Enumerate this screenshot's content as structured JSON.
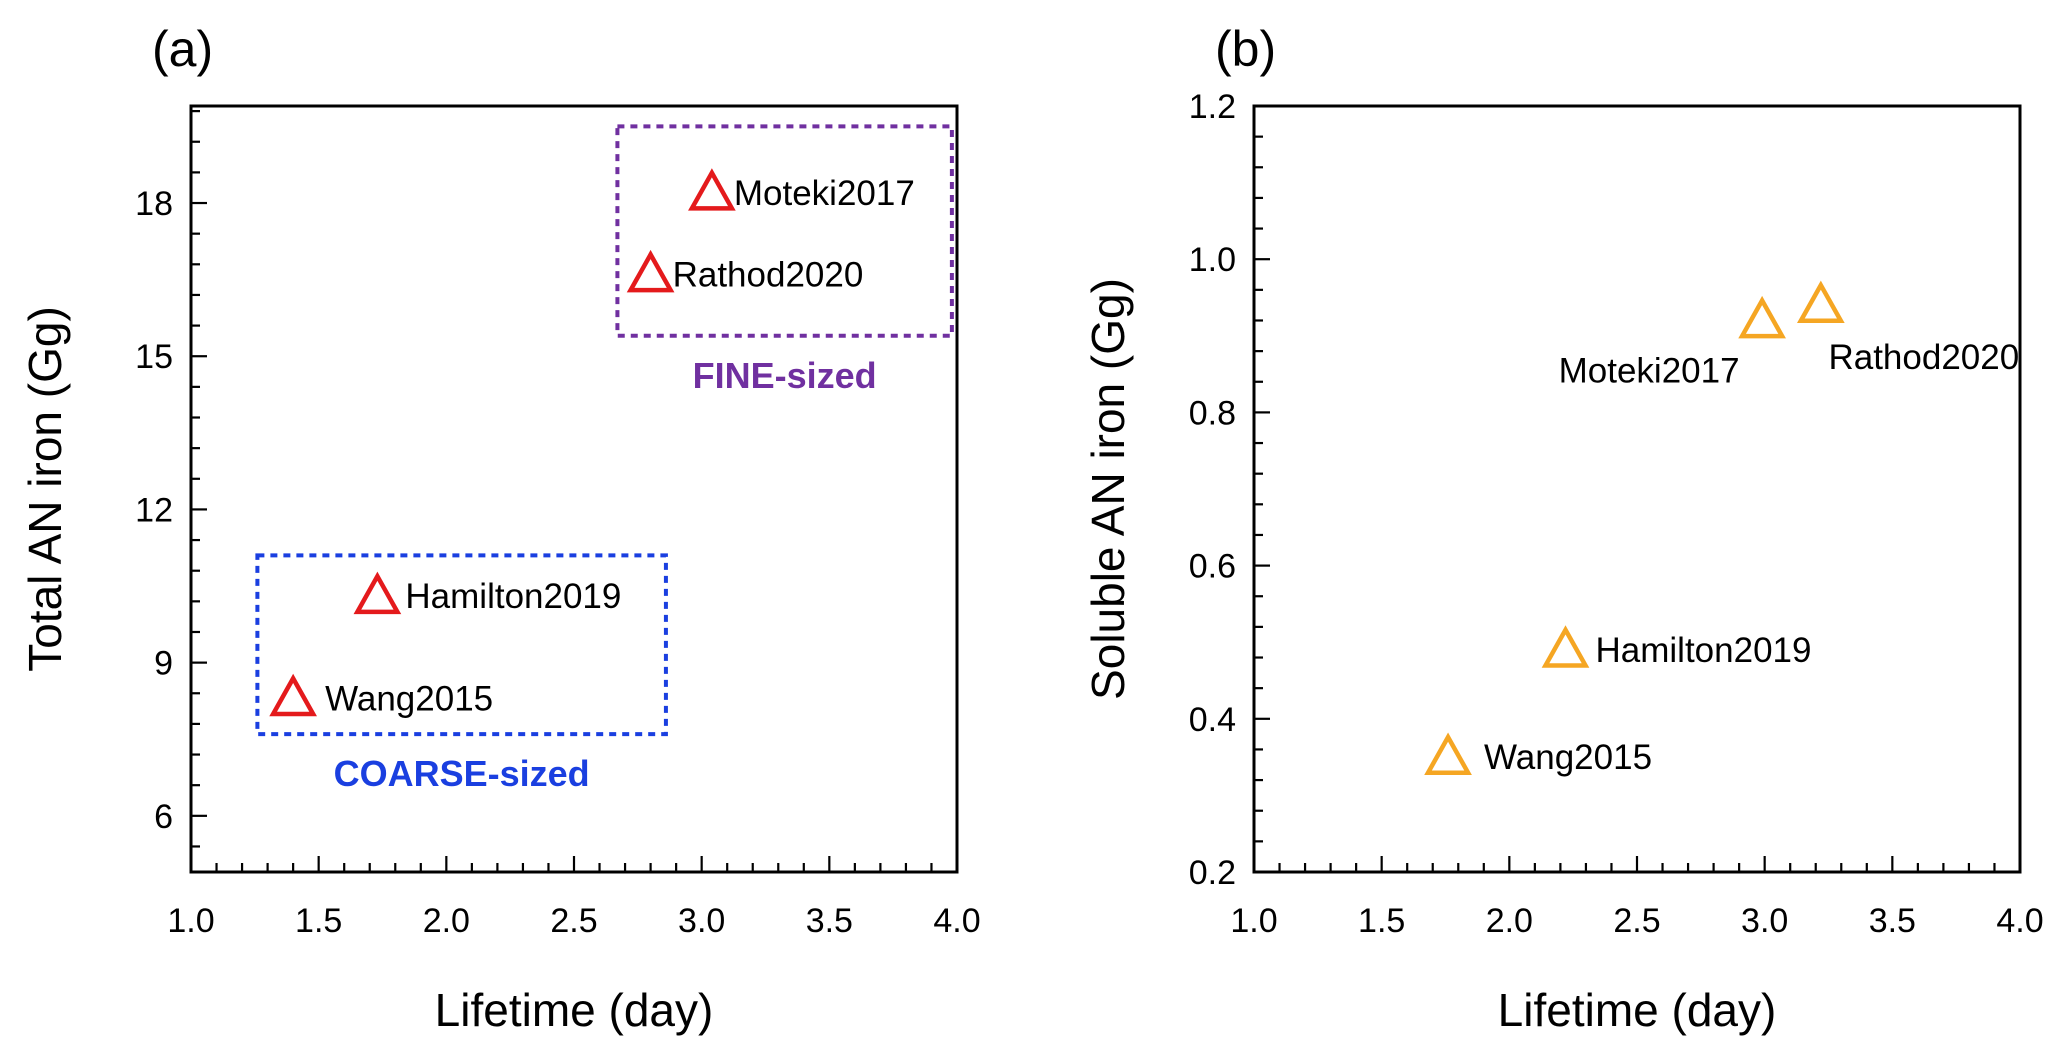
{
  "chart_data": [
    {
      "type": "scatter",
      "panel_label": "(a)",
      "xlabel": "Lifetime (day)",
      "ylabel": "Total AN iron (Gg)",
      "xlim": [
        1.0,
        4.0
      ],
      "ylim": [
        4.9,
        19.9
      ],
      "xticks": [
        "1.0",
        "1.5",
        "2.0",
        "2.5",
        "3.0",
        "3.5",
        "4.0"
      ],
      "yticks": [
        "6",
        "9",
        "12",
        "15",
        "18"
      ],
      "marker_color": "#e41a1c",
      "points": [
        {
          "label": "Moteki2017",
          "x": 3.04,
          "y": 18.2
        },
        {
          "label": "Rathod2020",
          "x": 2.8,
          "y": 16.6
        },
        {
          "label": "Hamilton2019",
          "x": 1.73,
          "y": 10.3
        },
        {
          "label": "Wang2015",
          "x": 1.4,
          "y": 8.3
        }
      ],
      "groups": [
        {
          "label": "FINE-sized",
          "color": "#7030a0",
          "x_range": [
            2.67,
            3.98
          ],
          "y_range": [
            15.4,
            19.5
          ],
          "caption_position": "below-box"
        },
        {
          "label": "COARSE-sized",
          "color": "#1a3fe0",
          "x_range": [
            1.26,
            2.86
          ],
          "y_range": [
            7.6,
            11.1
          ],
          "caption_position": "below-box"
        }
      ]
    },
    {
      "type": "scatter",
      "panel_label": "(b)",
      "xlabel": "Lifetime (day)",
      "ylabel": "Soluble AN iron (Gg)",
      "xlim": [
        1.0,
        4.0
      ],
      "ylim": [
        0.2,
        1.2
      ],
      "xticks": [
        "1.0",
        "1.5",
        "2.0",
        "2.5",
        "3.0",
        "3.5",
        "4.0"
      ],
      "yticks": [
        "0.2",
        "0.4",
        "0.6",
        "0.8",
        "1.0",
        "1.2"
      ],
      "marker_color": "#f5a623",
      "points": [
        {
          "label": "Moteki2017",
          "x": 2.99,
          "y": 0.92
        },
        {
          "label": "Rathod2020",
          "x": 3.22,
          "y": 0.94
        },
        {
          "label": "Hamilton2019",
          "x": 2.22,
          "y": 0.49
        },
        {
          "label": "Wang2015",
          "x": 1.76,
          "y": 0.35
        }
      ]
    }
  ]
}
